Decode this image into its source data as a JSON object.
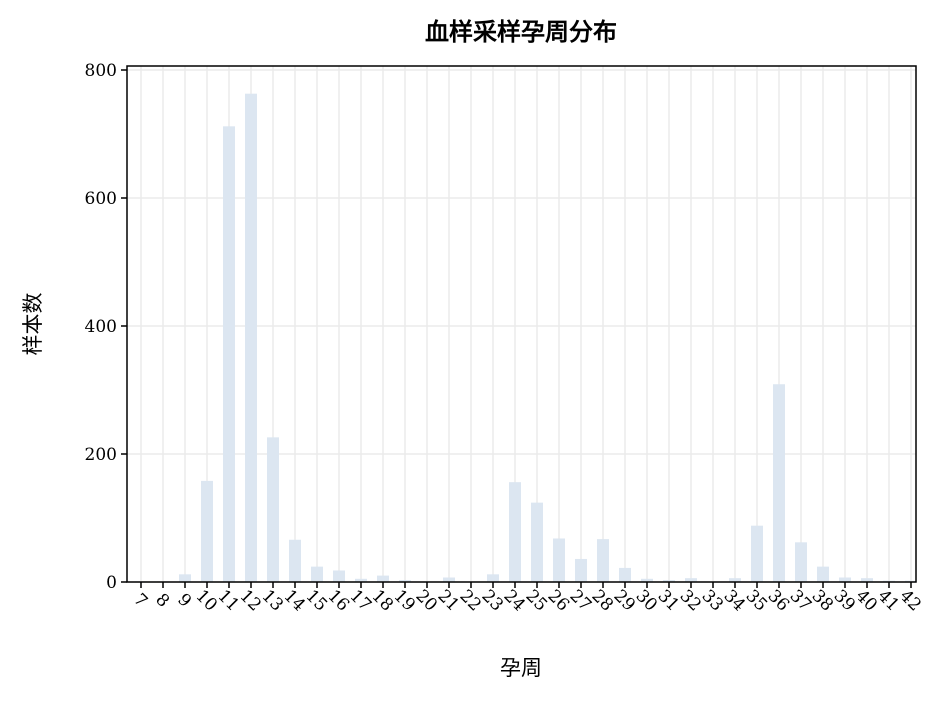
{
  "chart_data": {
    "type": "bar",
    "title": "血样采样孕周分布",
    "xlabel": "孕周",
    "ylabel": "样本数",
    "categories": [
      "7",
      "8",
      "9",
      "10",
      "11",
      "12",
      "13",
      "14",
      "15",
      "16",
      "17",
      "18",
      "19",
      "20",
      "21",
      "22",
      "23",
      "24",
      "25",
      "26",
      "27",
      "28",
      "29",
      "30",
      "31",
      "32",
      "33",
      "34",
      "35",
      "36",
      "37",
      "38",
      "39",
      "40",
      "41",
      "42"
    ],
    "values": [
      1,
      1,
      12,
      158,
      712,
      763,
      226,
      66,
      24,
      18,
      5,
      10,
      3,
      0,
      7,
      0,
      12,
      156,
      124,
      68,
      36,
      67,
      22,
      5,
      3,
      6,
      0,
      6,
      88,
      309,
      62,
      24,
      7,
      6,
      2,
      2
    ],
    "ylim": [
      0,
      800
    ],
    "yticks": [
      0,
      200,
      400,
      600,
      800
    ],
    "grid": true,
    "bar_color": "#dce6f1"
  }
}
